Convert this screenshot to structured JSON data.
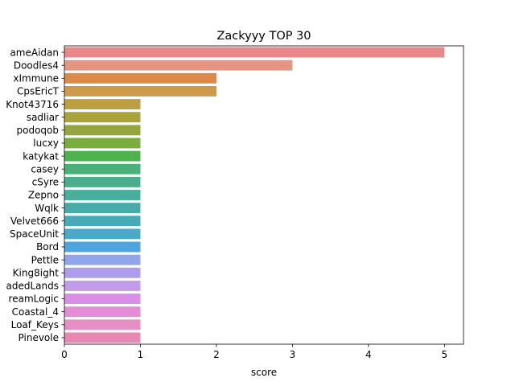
{
  "chart_data": {
    "type": "bar",
    "orientation": "horizontal",
    "title": "Zackyyy TOP 30",
    "xlabel": "score",
    "ylabel": "",
    "xlim": [
      0,
      5.25
    ],
    "xticks": [
      0,
      1,
      2,
      3,
      4,
      5
    ],
    "grid": false,
    "legend": "none",
    "categories": [
      "ameAidan",
      "Doodles4",
      "xImmune",
      "CpsEricT",
      "Knot43716",
      "sadliar",
      "podoqob",
      "lucxy",
      "katykat",
      "casey",
      "cSyre",
      "Zepno",
      "Wqlk",
      "Velvet666",
      "SpaceUnit",
      "Bord",
      "Pettle",
      "King8ight",
      "adedLands",
      "reamLogic",
      "Coastal_4",
      "Loaf_Keys",
      "Pinevole"
    ],
    "values": [
      5,
      3,
      2,
      2,
      1,
      1,
      1,
      1,
      1,
      1,
      1,
      1,
      1,
      1,
      1,
      1,
      1,
      1,
      1,
      1,
      1,
      1,
      1
    ],
    "colors": [
      "#e8888a",
      "#e69583",
      "#dd8a49",
      "#cd9a4b",
      "#bd9e40",
      "#a9a33a",
      "#96a63e",
      "#7bac3e",
      "#4eb24e",
      "#49b07a",
      "#4aad8c",
      "#4aae9d",
      "#47aca9",
      "#47abb7",
      "#49aac8",
      "#4ea4dc",
      "#90a5ea",
      "#ad9ded",
      "#c49be9",
      "#da8fe7",
      "#e48cd5",
      "#e68fc4",
      "#e688b1"
    ]
  }
}
